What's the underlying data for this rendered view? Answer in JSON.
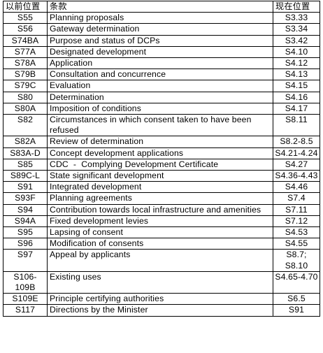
{
  "headers": {
    "old": "以前位置",
    "title": "条款",
    "new": "现在位置"
  },
  "rows": [
    {
      "old": "S55",
      "title": "Planning proposals",
      "new": "S3.33"
    },
    {
      "old": "S56",
      "title": "Gateway determination",
      "new": "S3.34"
    },
    {
      "old": "S74BA",
      "title": "Purpose and status of DCPs",
      "new": "S3.42"
    },
    {
      "old": "S77A",
      "title": "Designated development",
      "new": "S4.10"
    },
    {
      "old": "S78A",
      "title": "Application",
      "new": "S4.12"
    },
    {
      "old": "S79B",
      "title": "Consultation and concurrence",
      "new": "S4.13"
    },
    {
      "old": "S79C",
      "title": "Evaluation",
      "new": "S4.15"
    },
    {
      "old": "S80",
      "title": "Determination",
      "new": "S4.16"
    },
    {
      "old": "S80A",
      "title": "Imposition of conditions",
      "new": "S4.17"
    },
    {
      "old": "S82",
      "title": "Circumstances in which consent taken to have been refused",
      "new": "S8.11"
    },
    {
      "old": "S82A",
      "title": "Review of determination",
      "new": "S8.2-8.5"
    },
    {
      "old": "S83A-D",
      "title": "Concept development applications",
      "new": "S4.21-4.24"
    },
    {
      "old": "S85",
      "title": "CDC  -  Complying Development Certificate",
      "new": "S4.27"
    },
    {
      "old": "S89C-L",
      "title": "State significant development",
      "new": "S4.36-4.43"
    },
    {
      "old": "S91",
      "title": "Integrated development",
      "new": "S4.46"
    },
    {
      "old": "S93F",
      "title": "Planning agreements",
      "new": "S7.4"
    },
    {
      "old": "S94",
      "title": "Contribution towards local infrastructure and amenities",
      "new": "S7.11"
    },
    {
      "old": "S94A",
      "title": "Fixed development levies",
      "new": "S7.12"
    },
    {
      "old": "S95",
      "title": "Lapsing of consent",
      "new": "S4.53"
    },
    {
      "old": "S96",
      "title": "Modification of consents",
      "new": "S4.55"
    },
    {
      "old": "S97",
      "title": "Appeal by applicants",
      "new": "S8.7; S8.10"
    },
    {
      "old": "S106-109B",
      "title": "Existing uses",
      "new": "S4.65-4.70"
    },
    {
      "old": "S109E",
      "title": "Principle certifying authorities",
      "new": "S6.5"
    },
    {
      "old": "S117",
      "title": "Directions by the Minister",
      "new": "S91"
    }
  ]
}
